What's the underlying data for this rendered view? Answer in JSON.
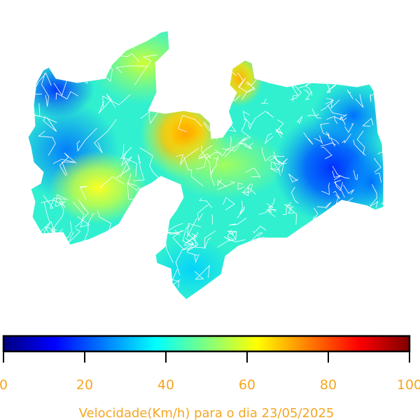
{
  "colorbar": {
    "title": "Velocidade(Km/h) para o dia 23/05/2025",
    "min": 0,
    "max": 100,
    "ticks": [
      "0",
      "20",
      "40",
      "60",
      "80",
      "100"
    ],
    "label_color": "#f5a623",
    "colormap": "jet",
    "stops": [
      "#00007f",
      "#0000ff",
      "#007fff",
      "#00ffff",
      "#7fff7f",
      "#ffff00",
      "#ff7f00",
      "#ff0000",
      "#7f0000"
    ]
  },
  "map": {
    "region": "Paraíba",
    "boundary_color": "#ffffff",
    "speed_zones": [
      {
        "level": 15
      },
      {
        "level": 25
      },
      {
        "level": 60
      },
      {
        "level": 65
      },
      {
        "level": 68
      },
      {
        "level": 18
      }
    ]
  }
}
